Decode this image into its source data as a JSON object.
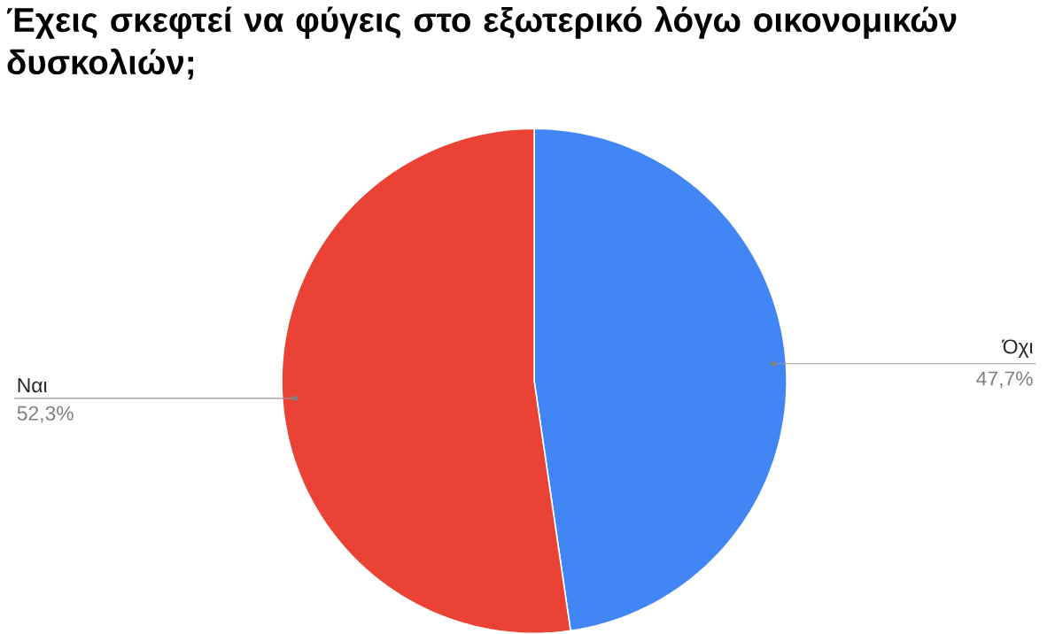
{
  "chart_data": {
    "type": "pie",
    "title": "Έχεις σκεφτεί να φύγεις στο εξωτερικό λόγω οικονομικών δυσκολιών;",
    "categories": [
      "Όχι",
      "Ναι"
    ],
    "values": [
      47.7,
      52.3
    ],
    "colors": [
      "#4285f4",
      "#ea4335"
    ],
    "value_labels": [
      "47,7%",
      "52,3%"
    ]
  }
}
